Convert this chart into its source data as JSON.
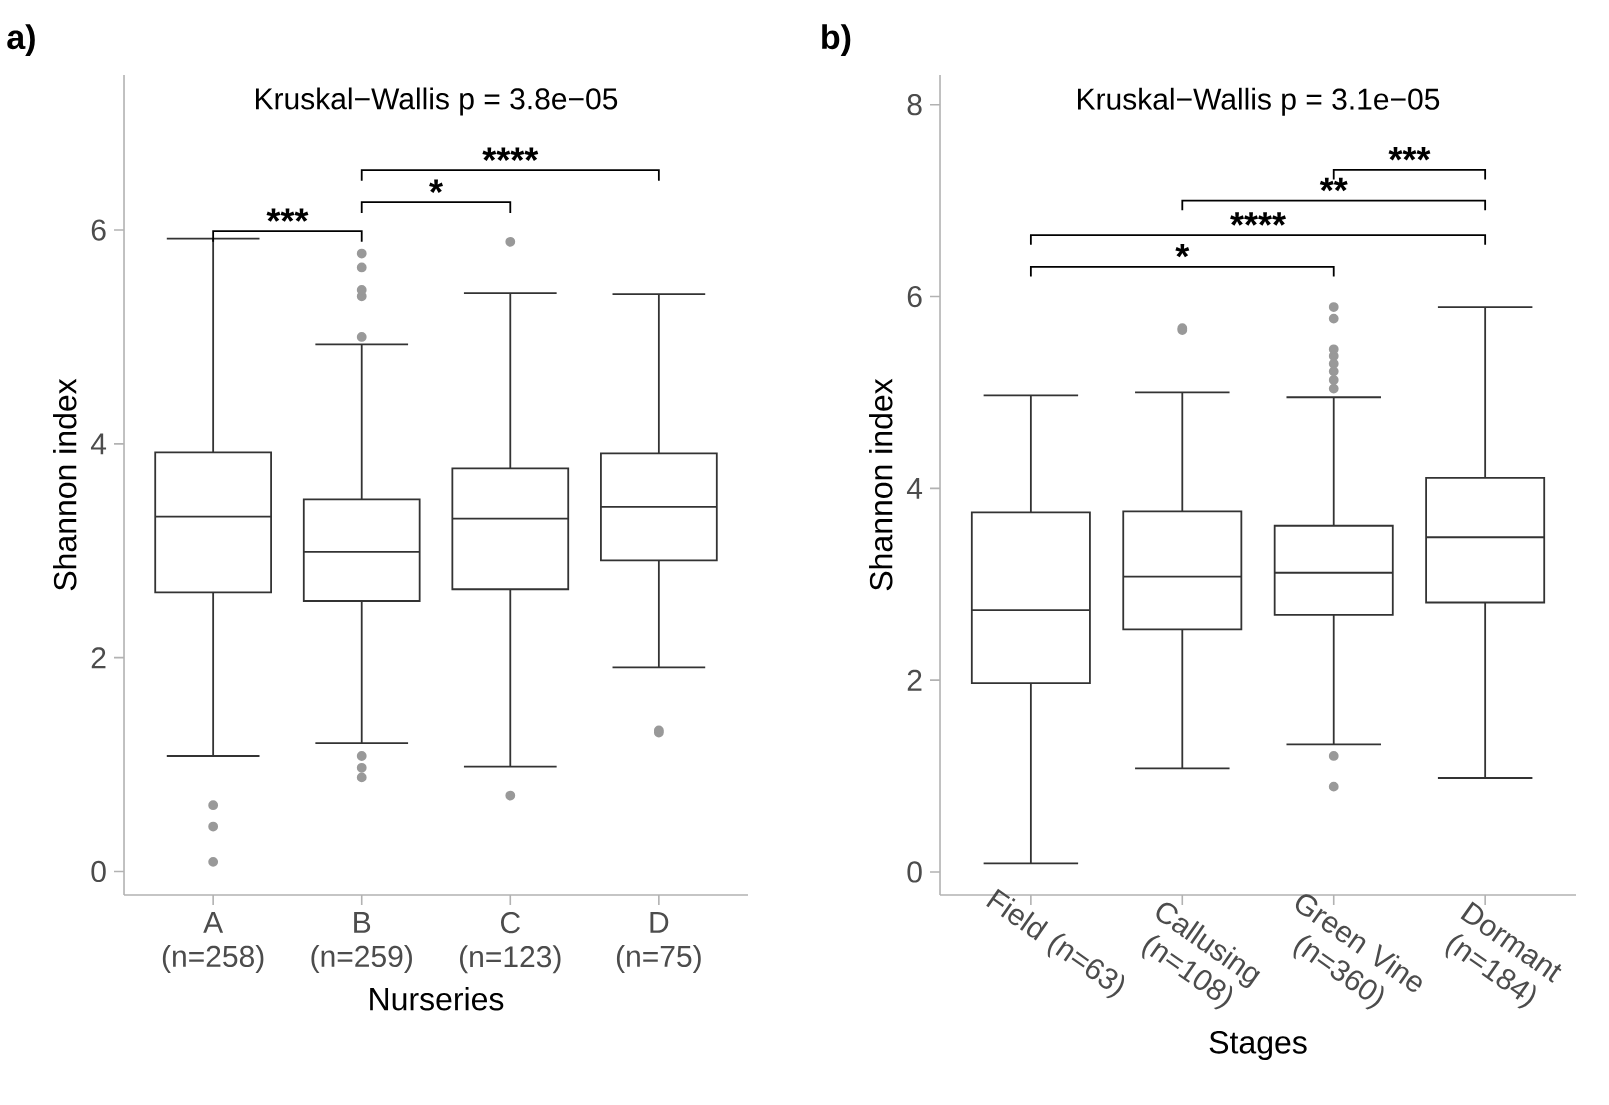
{
  "chart_data": [
    {
      "type": "box",
      "title": "a)",
      "xlabel": "Nurseries",
      "ylabel": "Shannon index",
      "color": "#333333",
      "categories": [
        "A (n=258)",
        "B (n=259)",
        "C (n=123)",
        "D (n=75)"
      ],
      "boxes": [
        {
          "low": 1.08,
          "q1": 2.61,
          "median": 3.32,
          "q3": 3.92,
          "high": 5.92,
          "outliers": [
            0.62,
            0.42,
            0.09
          ]
        },
        {
          "low": 1.2,
          "q1": 2.53,
          "median": 2.99,
          "q3": 3.48,
          "high": 4.93,
          "outliers": [
            5.0,
            5.38,
            5.44,
            5.65,
            5.78,
            1.08,
            0.97,
            0.88
          ]
        },
        {
          "low": 0.98,
          "q1": 2.64,
          "median": 3.3,
          "q3": 3.77,
          "high": 5.41,
          "outliers": [
            5.89,
            0.71
          ]
        },
        {
          "low": 1.91,
          "q1": 2.91,
          "median": 3.41,
          "q3": 3.91,
          "high": 5.4,
          "outliers": [
            1.3,
            1.32
          ]
        }
      ],
      "ylim": [
        -0.22,
        7.45
      ],
      "yticks": [
        0,
        2,
        4,
        6
      ],
      "annotations": [
        "Kruskal−Wallis p = 3.8e−05",
        "***",
        "*",
        "****"
      ]
    },
    {
      "type": "box",
      "title": "b)",
      "xlabel": "Stages",
      "ylabel": "Shannon index",
      "color": "#333333",
      "categories": [
        "Field (n=63)",
        "Callusing (n=108)",
        "Green Vine (n=360)",
        "Dormant (n=184)"
      ],
      "boxes": [
        {
          "low": 0.09,
          "q1": 1.97,
          "median": 2.73,
          "q3": 3.75,
          "high": 4.97
        },
        {
          "low": 1.08,
          "q1": 2.53,
          "median": 3.08,
          "q3": 3.76,
          "high": 5.0,
          "outliers": [
            5.65,
            5.67
          ]
        },
        {
          "low": 1.33,
          "q1": 2.68,
          "median": 3.12,
          "q3": 3.61,
          "high": 4.95,
          "outliers": [
            5.89,
            5.77,
            5.45,
            5.38,
            5.3,
            5.22,
            5.13,
            5.04,
            1.21,
            0.89
          ]
        },
        {
          "low": 0.98,
          "q1": 2.81,
          "median": 3.49,
          "q3": 4.11,
          "high": 5.89
        }
      ],
      "ylim": [
        -0.24,
        8.31
      ],
      "yticks": [
        0,
        2,
        4,
        6,
        8
      ],
      "annotations": [
        "Kruskal−Wallis p = 3.1e−05",
        "***",
        "**",
        "****",
        "*"
      ]
    }
  ]
}
